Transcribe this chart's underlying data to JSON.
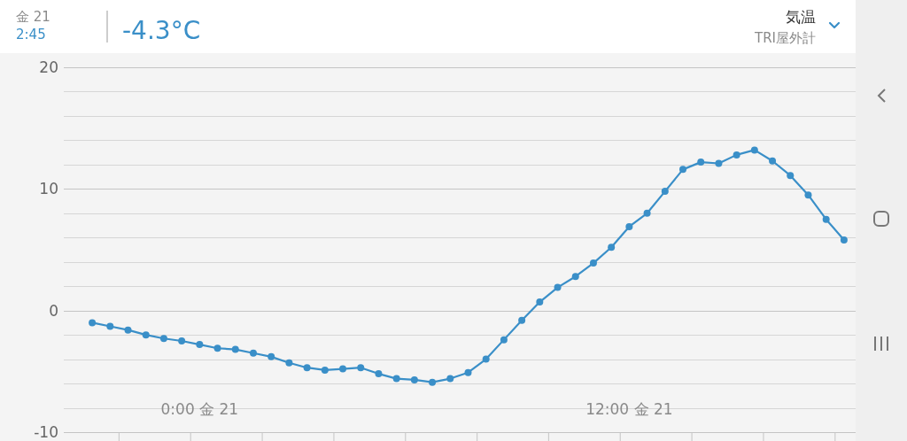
{
  "chart_data": {
    "type": "line",
    "title": "気温",
    "subtitle": "TRI屋外計",
    "annotations": [
      "金 21",
      "2:45",
      "-4.3°C"
    ],
    "categories": [
      null,
      null,
      null,
      null,
      null,
      null,
      "0:00 金 21",
      null,
      null,
      null,
      null,
      null,
      null,
      null,
      null,
      null,
      null,
      null,
      null,
      null,
      null,
      null,
      null,
      null,
      null,
      null,
      null,
      null,
      null,
      null,
      "12:00 金 21",
      null,
      null,
      null,
      null,
      null,
      null,
      null,
      null,
      null,
      null,
      null,
      null
    ],
    "series": [
      {
        "color": "#3a8fc8",
        "values": [
          -1.0,
          -1.3,
          -1.6,
          -2.0,
          -2.3,
          -2.5,
          -2.8,
          -3.1,
          -3.2,
          -3.5,
          -3.8,
          -4.3,
          -4.7,
          -4.9,
          -4.8,
          -4.7,
          -5.2,
          -5.6,
          -5.7,
          -5.9,
          -5.6,
          -5.1,
          -4.0,
          -2.4,
          -0.8,
          0.7,
          1.9,
          2.8,
          3.9,
          5.2,
          6.9,
          8.0,
          9.8,
          11.6,
          12.2,
          12.1,
          12.8,
          13.2,
          12.3,
          11.1,
          9.5,
          7.5,
          5.8
        ]
      }
    ],
    "marker": "circle",
    "ylim": [
      -10,
      20
    ],
    "yticks": [
      -10,
      {
        "value": -8,
        "label": null
      },
      {
        "value": -6,
        "label": null
      },
      {
        "value": -4,
        "label": null
      },
      {
        "value": -2,
        "label": null
      },
      0,
      {
        "value": 2,
        "label": null
      },
      {
        "value": 4,
        "label": null
      },
      {
        "value": 6,
        "label": null
      },
      {
        "value": 8,
        "label": null
      },
      10,
      {
        "value": 12,
        "label": null
      },
      {
        "value": 14,
        "label": null
      },
      {
        "value": 16,
        "label": null
      },
      {
        "value": 18,
        "label": null
      },
      20
    ],
    "grid": "y"
  }
}
